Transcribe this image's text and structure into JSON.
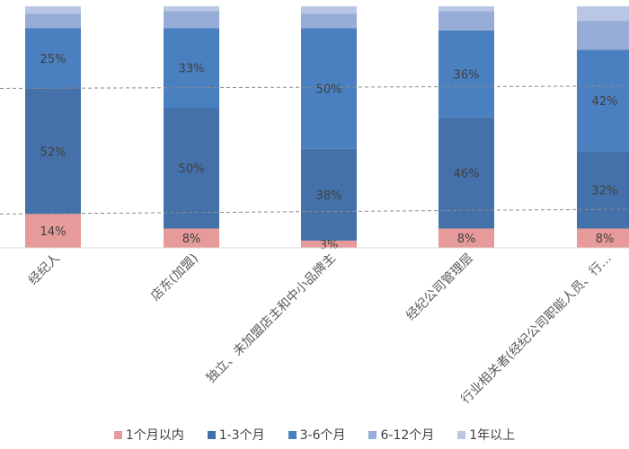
{
  "chart_data": {
    "type": "bar",
    "stacked": true,
    "normalized": true,
    "categories": [
      "经纪人",
      "店东(加盟)",
      "独立、未加盟店主和中小品牌主",
      "经纪公司管理层",
      "行业相关者(经纪公司职能人员、行…"
    ],
    "series": [
      {
        "name": "1个月以内",
        "color": "#e69a99",
        "values": [
          14,
          8,
          3,
          8,
          8
        ]
      },
      {
        "name": "1-3个月",
        "color": "#4471a9",
        "values": [
          52,
          50,
          38,
          46,
          32
        ]
      },
      {
        "name": "3-6个月",
        "color": "#4a7fc0",
        "values": [
          25,
          33,
          50,
          36,
          42
        ]
      },
      {
        "name": "6-12个月",
        "color": "#97acd7",
        "values": [
          6,
          7,
          6,
          8,
          12
        ]
      },
      {
        "name": "1年以上",
        "color": "#b9c7e4",
        "values": [
          3,
          2,
          3,
          2,
          6
        ]
      }
    ],
    "data_labels": [
      [
        "14%",
        "52%",
        "25%",
        "",
        ""
      ],
      [
        "8%",
        "50%",
        "33%",
        "",
        ""
      ],
      [
        "3%",
        "38%",
        "50%",
        "",
        ""
      ],
      [
        "8%",
        "46%",
        "36%",
        "",
        ""
      ],
      [
        "8%",
        "32%",
        "42%",
        "",
        ""
      ]
    ],
    "ylim": [
      0,
      100
    ],
    "legend": "bottom",
    "grid": false,
    "reference_lines": [
      {
        "style": "dashed",
        "y_at_first": 66,
        "y_at_last": 67
      },
      {
        "style": "dashed",
        "y_at_first": 14,
        "y_at_last": 16
      }
    ]
  }
}
